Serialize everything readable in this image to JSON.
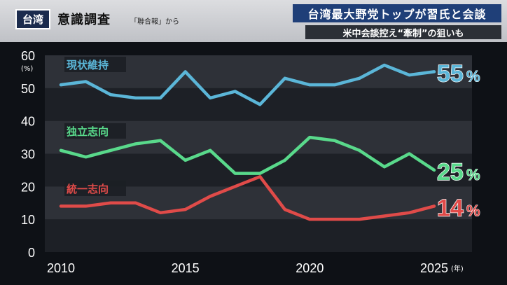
{
  "header": {
    "tag": "台湾",
    "title": "意識調査",
    "source": "「聯合報」から",
    "headline": "台湾最大野党トップが習氏と会談",
    "subheadline": "米中会談控え“牽制”の狙いも"
  },
  "colors": {
    "bg": "#0e1116",
    "band_light": "#2e3138",
    "band_dark": "#1d2026",
    "status_quo": "#5bb6d8",
    "independence": "#59d98b",
    "unification": "#e04b49"
  },
  "chart_data": {
    "type": "line",
    "unit_label": "(%)",
    "year_suffix": "(年)",
    "ylim": [
      0,
      60
    ],
    "xlim": [
      2010,
      2025
    ],
    "yticks": [
      0,
      10,
      20,
      30,
      40,
      50,
      60
    ],
    "xticks": [
      {
        "value": 2010,
        "label": "2010"
      },
      {
        "value": 2015,
        "label": "2015"
      },
      {
        "value": 2020,
        "label": "2020"
      },
      {
        "value": 2025,
        "label": "2025"
      }
    ],
    "series": [
      {
        "name": "現状維持",
        "end_label": "55",
        "pct": "%",
        "color": "#5bb6d8",
        "x": [
          2010,
          2011,
          2012,
          2013,
          2014,
          2015,
          2016,
          2017,
          2018,
          2019,
          2020,
          2021,
          2022,
          2023,
          2024,
          2025
        ],
        "values": [
          51,
          52,
          48,
          47,
          47,
          55,
          47,
          49,
          45,
          53,
          51,
          51,
          53,
          57,
          54,
          55
        ]
      },
      {
        "name": "独立志向",
        "end_label": "25",
        "pct": "%",
        "color": "#59d98b",
        "x": [
          2010,
          2011,
          2012,
          2013,
          2014,
          2015,
          2016,
          2017,
          2018,
          2019,
          2020,
          2021,
          2022,
          2023,
          2024,
          2025
        ],
        "values": [
          31,
          29,
          31,
          33,
          34,
          28,
          31,
          24,
          24,
          28,
          35,
          34,
          31,
          26,
          30,
          25
        ]
      },
      {
        "name": "統一志向",
        "end_label": "14",
        "pct": "%",
        "color": "#e04b49",
        "x": [
          2010,
          2011,
          2012,
          2013,
          2014,
          2015,
          2016,
          2017,
          2018,
          2019,
          2020,
          2021,
          2022,
          2023,
          2024,
          2025
        ],
        "values": [
          14,
          14,
          15,
          15,
          12,
          13,
          17,
          20,
          23,
          13,
          10,
          10,
          10,
          11,
          12,
          14
        ]
      }
    ]
  }
}
